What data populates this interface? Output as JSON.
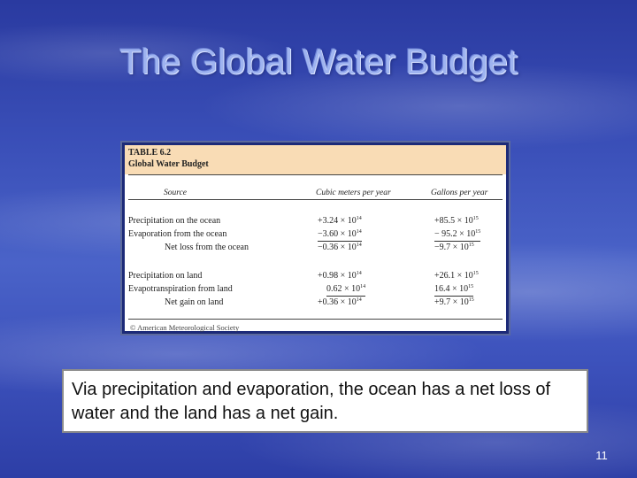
{
  "slide": {
    "title": "The Global Water Budget",
    "caption": "Via precipitation and evaporation, the ocean has a net loss of water and the land has a net gain.",
    "number": "11"
  },
  "table": {
    "number": "TABLE 6.2",
    "caption": "Global Water Budget",
    "headers": [
      "Source",
      "Cubic meters per year",
      "Gallons per year"
    ],
    "ocean": [
      {
        "source": "Precipitation on the ocean",
        "m3_base": "+3.24 × 10",
        "m3_exp": "14",
        "gal_base": "+85.5 × 10",
        "gal_exp": "15"
      },
      {
        "source": "Evaporation from the ocean",
        "m3_base": "−3.60 × 10",
        "m3_exp": "14",
        "gal_base": "− 95.2 × 10",
        "gal_exp": "15"
      },
      {
        "source": "Net loss from the ocean",
        "m3_base": "−0.36 × 10",
        "m3_exp": "14",
        "gal_base": "−9.7 × 10",
        "gal_exp": "15"
      }
    ],
    "land": [
      {
        "source": "Precipitation on land",
        "m3_base": "+0.98 × 10",
        "m3_exp": "14",
        "gal_base": "+26.1 × 10",
        "gal_exp": "15"
      },
      {
        "source": "Evapotranspiration from land",
        "m3_base": "0.62 × 10",
        "m3_exp": "14",
        "gal_base": "16.4 × 10",
        "gal_exp": "15"
      },
      {
        "source": "Net gain on land",
        "m3_base": "+0.36 × 10",
        "m3_exp": "14",
        "gal_base": "+9.7 × 10",
        "gal_exp": "15"
      }
    ],
    "footnote": "© American Meteorological Society"
  },
  "colors": {
    "title": "#9fb4f0",
    "table_header_bg": "#f9dcb5",
    "table_frame": "#1c2a78",
    "background": "#3a4fb8"
  }
}
